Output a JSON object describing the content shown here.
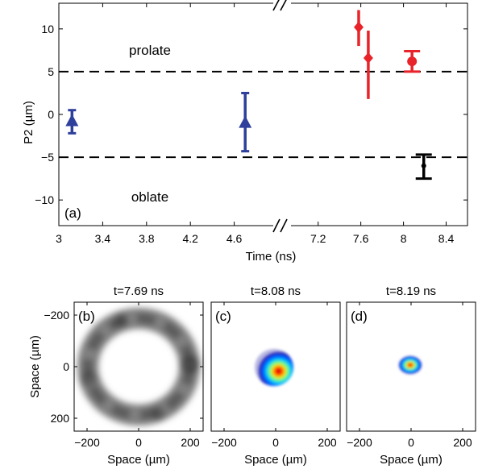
{
  "chart_data": [
    {
      "panel": "(a)",
      "type": "scatter",
      "ylabel": "P2 (µm)",
      "xlabel": "Time (ns)",
      "ylim": [
        -13,
        13
      ],
      "broken_x_axis": true,
      "x_ticks_left": [
        "3",
        "3.4",
        "3.8",
        "4.2",
        "4.6"
      ],
      "x_ticks_right": [
        "7.2",
        "7.6",
        "8",
        "8.4"
      ],
      "y_ticks": [
        "10",
        "5",
        "0",
        "−5",
        "−10"
      ],
      "reference_lines": [
        {
          "y": 5,
          "style": "dashed"
        },
        {
          "y": -5,
          "style": "dashed"
        }
      ],
      "region_labels": [
        {
          "text": "prolate",
          "y": 9.5
        },
        {
          "text": "oblate",
          "y": -9.5
        }
      ],
      "series": [
        {
          "color": "#2e3f9c",
          "points": [
            {
              "x": 3.12,
              "y": -0.8,
              "ylow": -2.2,
              "yhigh": 0.5,
              "marker": "triangle"
            },
            {
              "x": 4.7,
              "y": -1.0,
              "ylow": -4.3,
              "yhigh": 2.5,
              "marker": "triangle"
            }
          ]
        },
        {
          "color": "#e8242a",
          "points": [
            {
              "x": 7.58,
              "y": 10.2,
              "ylow": 8.0,
              "yhigh": 12.2,
              "marker": "diamond"
            },
            {
              "x": 7.67,
              "y": 6.6,
              "ylow": 1.8,
              "yhigh": 9.8,
              "marker": "diamond"
            },
            {
              "x": 8.08,
              "y": 6.2,
              "ylow": 5.0,
              "yhigh": 7.4,
              "marker": "circle",
              "capped": true
            }
          ]
        },
        {
          "color": "#000000",
          "points": [
            {
              "x": 8.19,
              "y": -6.0,
              "ylow": -7.5,
              "yhigh": -4.7,
              "marker": "dot",
              "capped": true
            }
          ]
        }
      ]
    },
    {
      "panel": "(b)",
      "type": "heatmap",
      "title": "t=7.69 ns",
      "xlabel": "Space (µm)",
      "ylabel": "Space (µm)",
      "x_ticks": [
        "−200",
        "0",
        "200"
      ],
      "y_ticks": [
        "−200",
        "0",
        "200"
      ],
      "colormap": "grayscale",
      "shape": "ring"
    },
    {
      "panel": "(c)",
      "type": "heatmap",
      "title": "t=8.08 ns",
      "xlabel": "Space (µm)",
      "x_ticks": [
        "−200",
        "0",
        "200"
      ],
      "colormap": "jet",
      "shape": "spot"
    },
    {
      "panel": "(d)",
      "type": "heatmap",
      "title": "t=8.19 ns",
      "xlabel": "Space (µm)",
      "x_ticks": [
        "−200",
        "0",
        "200"
      ],
      "colormap": "jet",
      "shape": "spot"
    }
  ]
}
